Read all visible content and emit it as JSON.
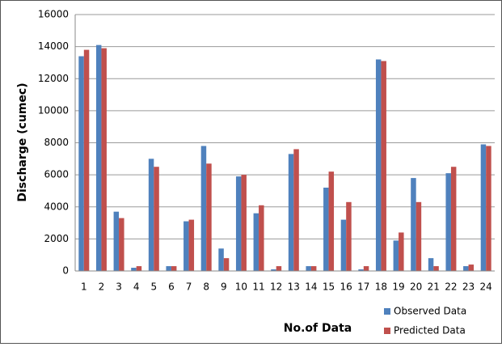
{
  "chart_data": {
    "type": "bar",
    "x_label": "No.of Data",
    "y_label": "Discharge (cumec)",
    "categories": [
      "1",
      "2",
      "3",
      "4",
      "5",
      "6",
      "7",
      "8",
      "9",
      "10",
      "11",
      "12",
      "13",
      "14",
      "15",
      "16",
      "17",
      "18",
      "19",
      "20",
      "21",
      "22",
      "23",
      "24"
    ],
    "series": [
      {
        "name": "Observed Data",
        "color": "#4f81bd",
        "values": [
          13400,
          14100,
          3700,
          200,
          7000,
          300,
          3100,
          7800,
          1400,
          5900,
          3600,
          100,
          7300,
          300,
          5200,
          3200,
          100,
          13200,
          1900,
          5800,
          800,
          6100,
          300,
          7900
        ]
      },
      {
        "name": "Predicted Data",
        "color": "#c0504d",
        "values": [
          13800,
          13900,
          3300,
          300,
          6500,
          300,
          3200,
          6700,
          800,
          6000,
          4100,
          300,
          7600,
          300,
          6200,
          4300,
          300,
          13100,
          2400,
          4300,
          300,
          6500,
          400,
          7800
        ]
      }
    ],
    "ylim": [
      0,
      16000
    ],
    "yticks": [
      0,
      2000,
      4000,
      6000,
      8000,
      10000,
      12000,
      14000,
      16000
    ],
    "grid": true,
    "legend": "bottom-right"
  }
}
